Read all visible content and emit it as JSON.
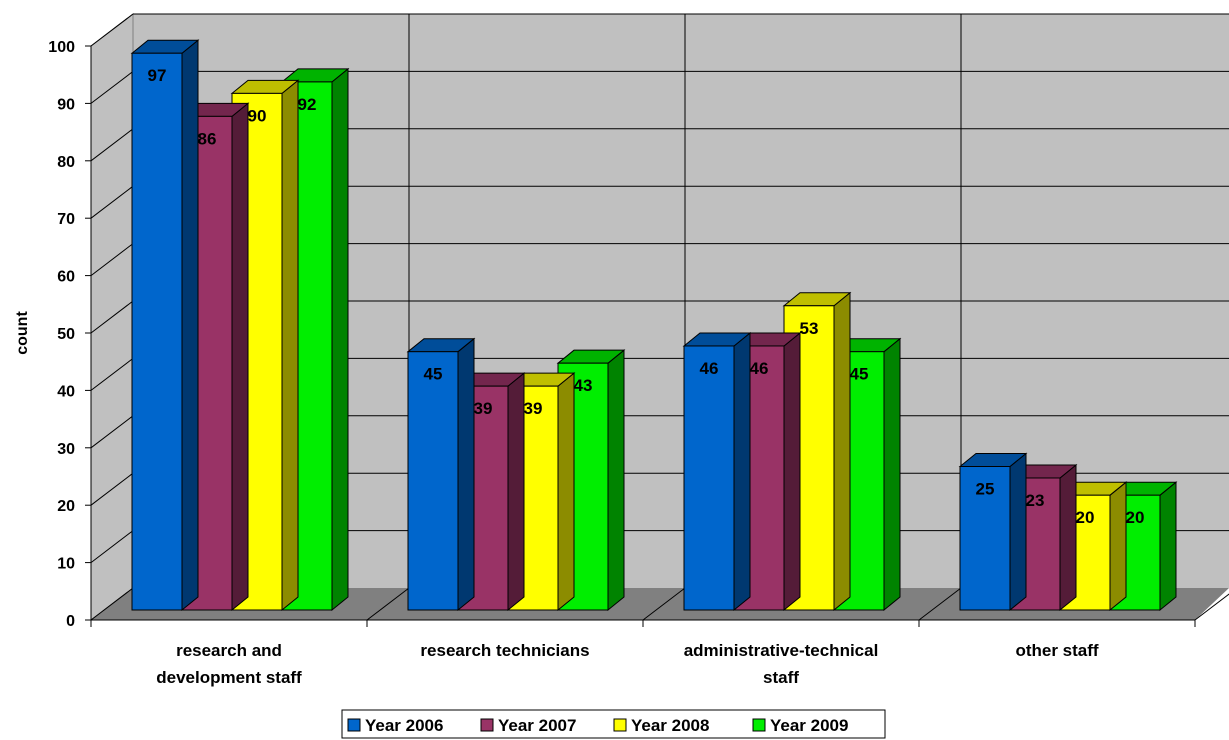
{
  "chart_data": {
    "type": "bar",
    "title": "",
    "xlabel": "",
    "ylabel": "count",
    "ylim": [
      0,
      100
    ],
    "yticks": [
      0,
      10,
      20,
      30,
      40,
      50,
      60,
      70,
      80,
      90,
      100
    ],
    "grid": true,
    "three_d": true,
    "legend_position": "bottom",
    "categories": [
      [
        "research and",
        "development staff"
      ],
      [
        "research technicians"
      ],
      [
        "administrative-technical",
        "staff"
      ],
      [
        "other staff"
      ]
    ],
    "series": [
      {
        "name": "Year 2006",
        "color": "#0066cc",
        "values": [
          97,
          45,
          46,
          25
        ]
      },
      {
        "name": "Year 2007",
        "color": "#993366",
        "values": [
          86,
          39,
          46,
          23
        ]
      },
      {
        "name": "Year 2008",
        "color": "#ffff00",
        "values": [
          90,
          39,
          53,
          20
        ]
      },
      {
        "name": "Year 2009",
        "color": "#00ee00",
        "values": [
          92,
          43,
          45,
          20
        ]
      }
    ],
    "wall_color": "#c0c0c0",
    "floor_color": "#808080"
  }
}
